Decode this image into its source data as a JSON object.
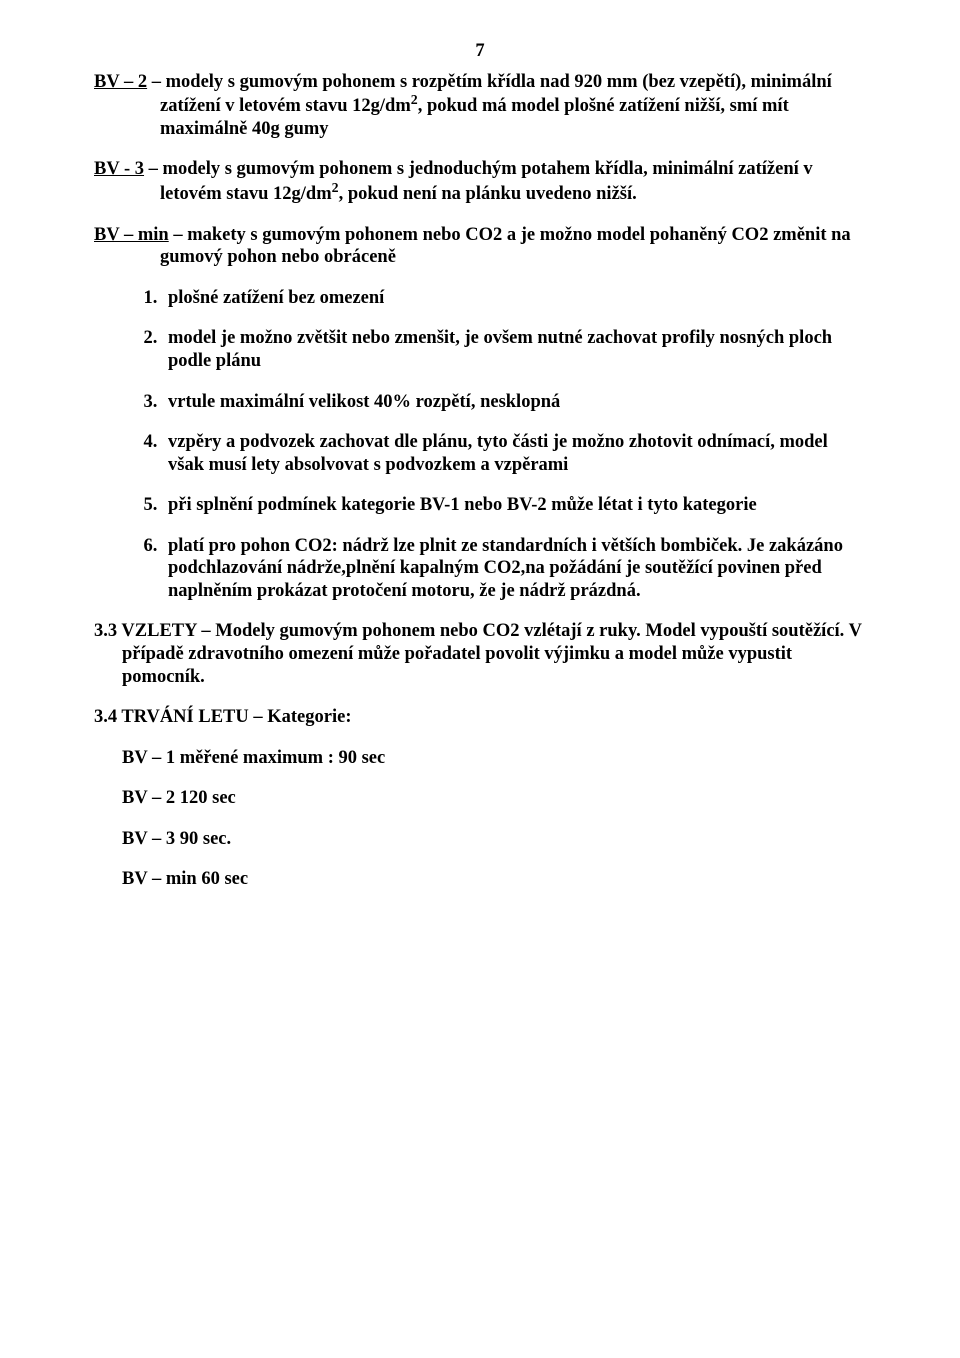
{
  "page_number": "7",
  "p1_pre": "BV – 2",
  "p1_rest": " – modely s gumovým pohonem s rozpětím křídla nad 920 mm (bez vzepětí), minimální zatížení v letovém stavu 12g/dm",
  "p1_sup": "2",
  "p1_after": ", pokud má model plošné zatížení nižší, smí mít maximálně 40g gumy",
  "p2_pre": "BV - 3",
  "p2_rest": " – modely s gumovým pohonem s jednoduchým potahem křídla, minimální zatížení v letovém stavu 12g/dm",
  "p2_sup": "2",
  "p2_after": ", pokud není na plánku uvedeno nižší.",
  "p3_pre": "BV – min",
  "p3_rest": " – makety s gumovým pohonem nebo CO2 a je možno model pohaněný CO2 změnit na gumový pohon nebo obráceně",
  "li1": "plošné zatížení bez omezení",
  "li2": "model je možno zvětšit nebo zmenšit, je ovšem nutné zachovat profily nosných ploch podle plánu",
  "li3": "vrtule maximální velikost 40% rozpětí, nesklopná",
  "li4": "vzpěry a podvozek zachovat dle plánu, tyto části je možno zhotovit odnímací, model však musí lety absolvovat s podvozkem a vzpěrami",
  "li5": "při splnění podmínek kategorie BV-1 nebo BV-2 může létat i tyto kategorie",
  "li6": "platí pro pohon CO2: nádrž lze plnit ze standardních i větších bombiček. Je zakázáno podchlazování nádrže,plnění kapalným CO2,na požádání je soutěžící povinen před naplněním prokázat protočení motoru, že je nádrž prázdná.",
  "s33": "3.3  VZLETY – Modely gumovým pohonem nebo CO2 vzlétají z ruky. Model vypouští soutěžící. V případě zdravotního omezení může pořadatel povolit výjimku a model může vypustit pomocník.",
  "s34": "3.4  TRVÁNÍ LETU – Kategorie:",
  "b1": "BV – 1 měřené maximum : 90 sec",
  "b2": "BV – 2  120 sec",
  "b3": "BV – 3  90 sec.",
  "b4": "BV – min  60 sec"
}
